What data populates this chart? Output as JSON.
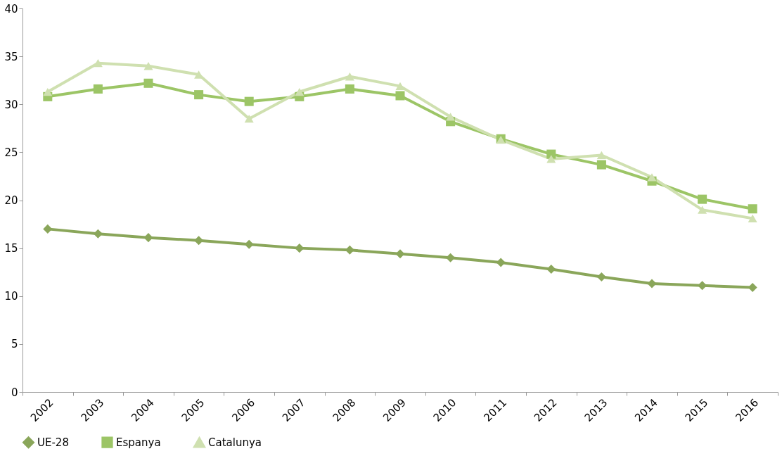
{
  "chart_data": {
    "type": "line",
    "categories": [
      "2002",
      "2003",
      "2004",
      "2005",
      "2006",
      "2007",
      "2008",
      "2009",
      "2010",
      "2011",
      "2012",
      "2013",
      "2014",
      "2015",
      "2016"
    ],
    "ylim": [
      0,
      40
    ],
    "yticks": [
      0,
      5,
      10,
      15,
      20,
      25,
      30,
      35,
      40
    ],
    "grid": false,
    "legend": "bottom",
    "line_style": "solid",
    "series": [
      {
        "name": "UE-28",
        "color": "#8aa65a",
        "marker": "diamond",
        "values": [
          17.0,
          16.5,
          16.1,
          15.8,
          15.4,
          15.0,
          14.8,
          14.4,
          14.0,
          13.5,
          12.8,
          12.0,
          11.3,
          11.1,
          10.9
        ]
      },
      {
        "name": "Espanya",
        "color": "#9cc566",
        "marker": "square",
        "values": [
          30.8,
          31.6,
          32.2,
          31.0,
          30.3,
          30.8,
          31.6,
          30.9,
          28.2,
          26.4,
          24.8,
          23.7,
          22.0,
          20.1,
          19.1
        ]
      },
      {
        "name": "Catalunya",
        "color": "#cfe0b0",
        "marker": "triangle",
        "values": [
          31.3,
          34.3,
          34.0,
          33.1,
          28.5,
          31.3,
          32.9,
          31.9,
          28.7,
          26.3,
          24.3,
          24.7,
          22.4,
          19.0,
          18.1
        ]
      }
    ]
  }
}
